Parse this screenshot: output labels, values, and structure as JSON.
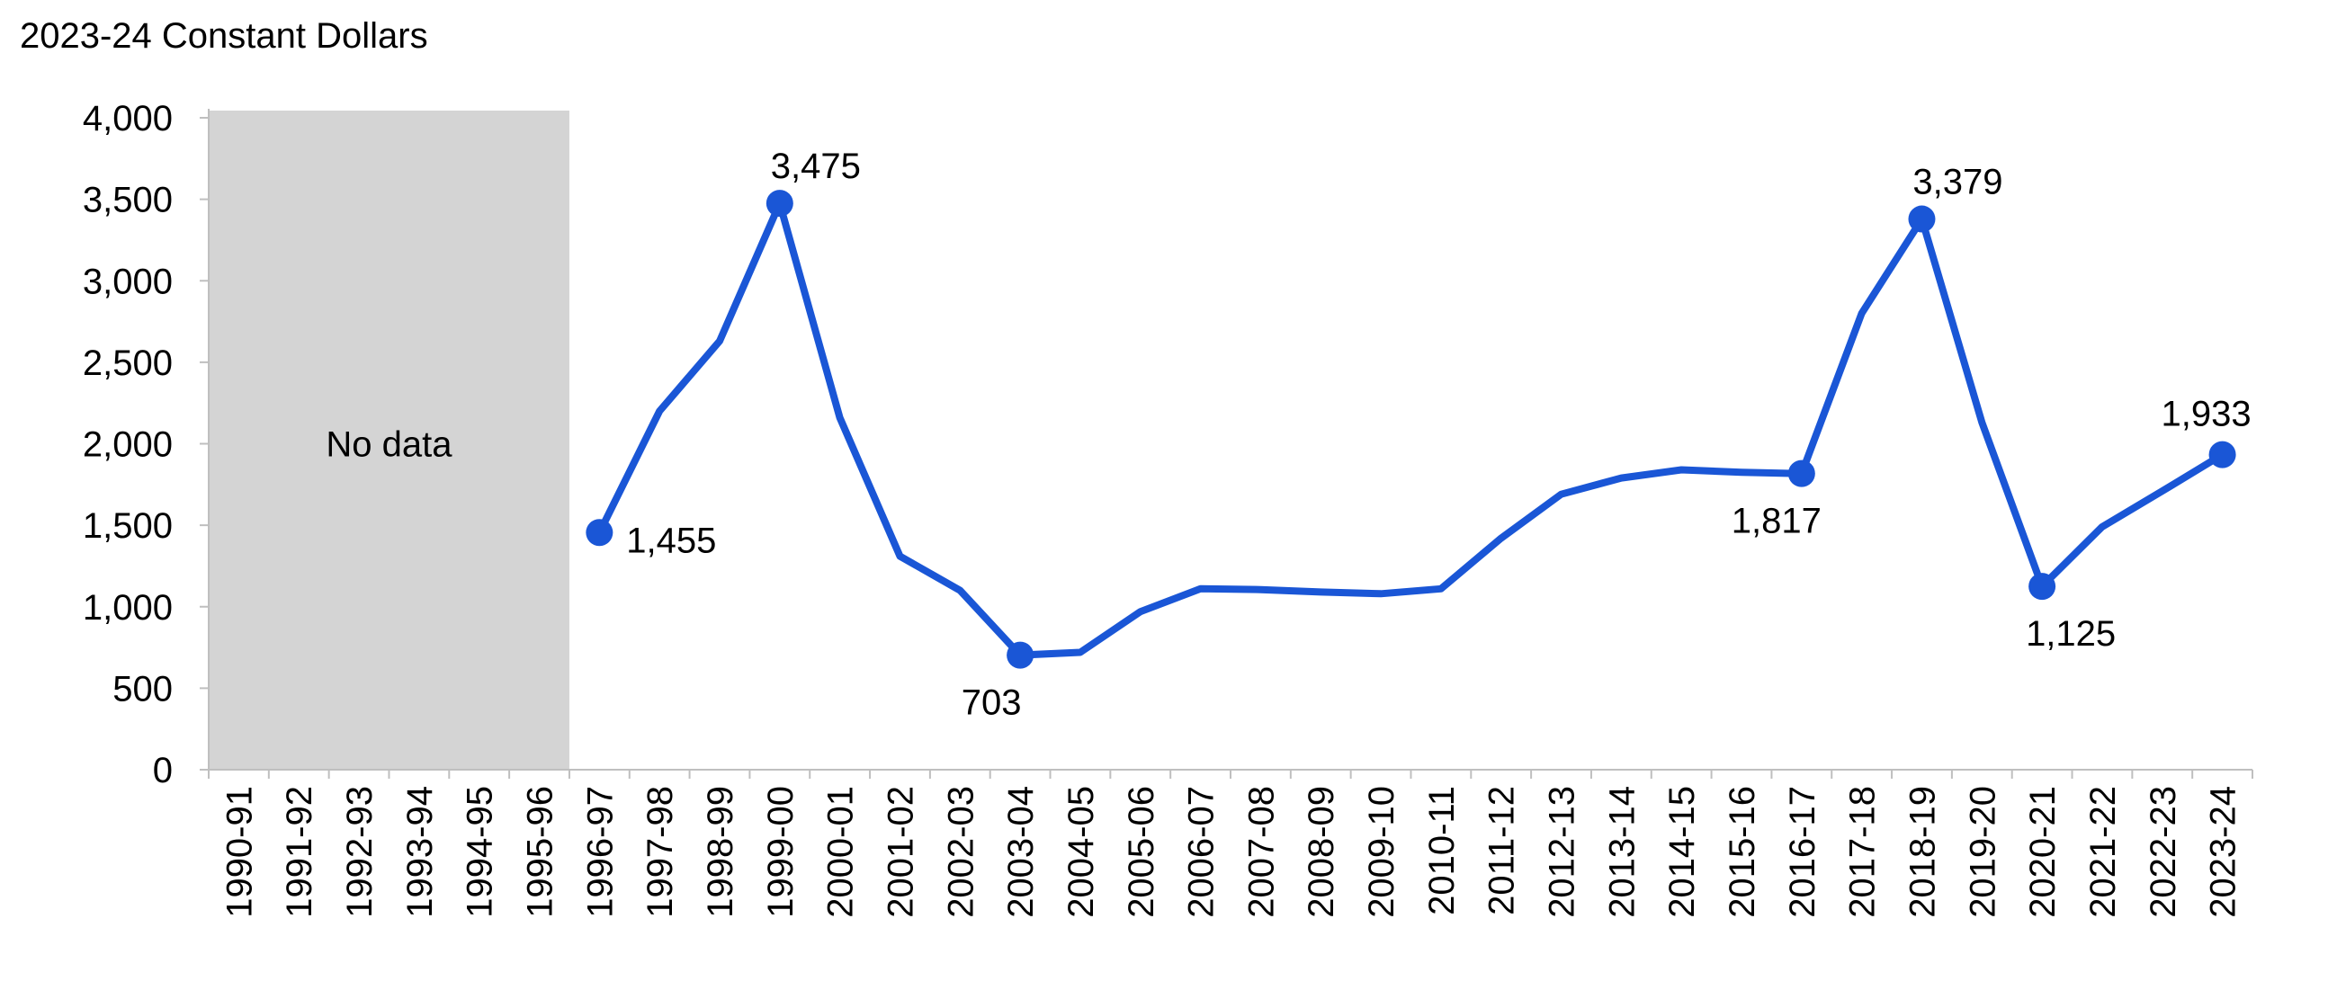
{
  "chart_data": {
    "type": "line",
    "units_label": "2023-24 Constant Dollars",
    "categories": [
      "1990-91",
      "1991-92",
      "1992-93",
      "1993-94",
      "1994-95",
      "1995-96",
      "1996-97",
      "1997-98",
      "1998-99",
      "1999-00",
      "2000-01",
      "2001-02",
      "2002-03",
      "2003-04",
      "2004-05",
      "2005-06",
      "2006-07",
      "2007-08",
      "2008-09",
      "2009-10",
      "2010-11",
      "2011-12",
      "2012-13",
      "2013-14",
      "2014-15",
      "2015-16",
      "2016-17",
      "2017-18",
      "2018-19",
      "2019-20",
      "2020-21",
      "2021-22",
      "2022-23",
      "2023-24"
    ],
    "series": [
      {
        "values": [
          null,
          null,
          null,
          null,
          null,
          null,
          1455,
          2200,
          2630,
          3475,
          2160,
          1310,
          1100,
          703,
          720,
          970,
          1110,
          1105,
          1090,
          1080,
          1110,
          1420,
          1690,
          1790,
          1840,
          1825,
          1817,
          2800,
          3379,
          2130,
          1125,
          1490,
          1710,
          1933
        ]
      }
    ],
    "ylim": [
      0,
      4000
    ],
    "yticks": [
      0,
      500,
      1000,
      1500,
      2000,
      2500,
      3000,
      3500,
      4000
    ],
    "ytick_labels": [
      "0",
      "500",
      "1,000",
      "1,500",
      "2,000",
      "2,500",
      "3,000",
      "3,500",
      "4,000"
    ],
    "no_data_region": {
      "from": "1990-91",
      "to": "1995-96",
      "label": "No data",
      "color": "#d4d4d4"
    },
    "annotations": [
      {
        "x": "1996-97",
        "value": 1455,
        "label": "1,455"
      },
      {
        "x": "1999-00",
        "value": 3475,
        "label": "3,475"
      },
      {
        "x": "2003-04",
        "value": 703,
        "label": "703"
      },
      {
        "x": "2016-17",
        "value": 1817,
        "label": "1,817"
      },
      {
        "x": "2018-19",
        "value": 3379,
        "label": "3,379"
      },
      {
        "x": "2020-21",
        "value": 1125,
        "label": "1,125"
      },
      {
        "x": "2023-24",
        "value": 1933,
        "label": "1,933"
      }
    ],
    "line_color": "#1a56d6",
    "grid": false
  }
}
